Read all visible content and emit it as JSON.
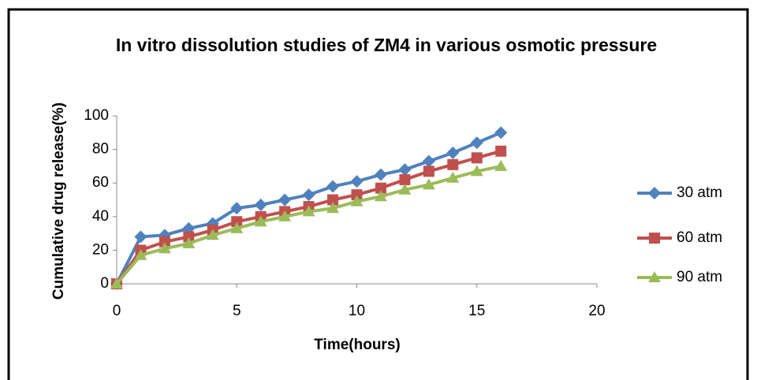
{
  "chart_data": {
    "type": "line",
    "title": "In vitro dissolution studies of ZM4 in various osmotic pressure",
    "x_label": "Time(hours)",
    "y_label": "Cumulative drug release(%)",
    "x": [
      0,
      1,
      2,
      3,
      4,
      5,
      6,
      7,
      8,
      9,
      10,
      11,
      12,
      13,
      14,
      15,
      16
    ],
    "series": [
      {
        "name": "30 atm",
        "color": "#4f81bd",
        "marker": "diamond",
        "values": [
          0,
          28,
          29,
          33,
          36,
          45,
          47,
          50,
          53,
          58,
          61,
          65,
          68,
          73,
          78,
          84,
          90
        ]
      },
      {
        "name": "60 atm",
        "color": "#c0504d",
        "marker": "square",
        "values": [
          0,
          20,
          25,
          28,
          32,
          37,
          40,
          43,
          46,
          50,
          53,
          57,
          62,
          67,
          71,
          75,
          79
        ]
      },
      {
        "name": "90 atm",
        "color": "#9bbb59",
        "marker": "triangle",
        "values": [
          0,
          17,
          21,
          24,
          29,
          33,
          37,
          40,
          43,
          45,
          49,
          52,
          56,
          59,
          63,
          67,
          70
        ]
      }
    ],
    "xlim": [
      0,
      20
    ],
    "xticks": [
      0,
      5,
      10,
      15,
      20
    ],
    "ylim": [
      0,
      100
    ],
    "yticks": [
      0,
      20,
      40,
      60,
      80,
      100
    ],
    "grid": false,
    "legend": "right"
  }
}
